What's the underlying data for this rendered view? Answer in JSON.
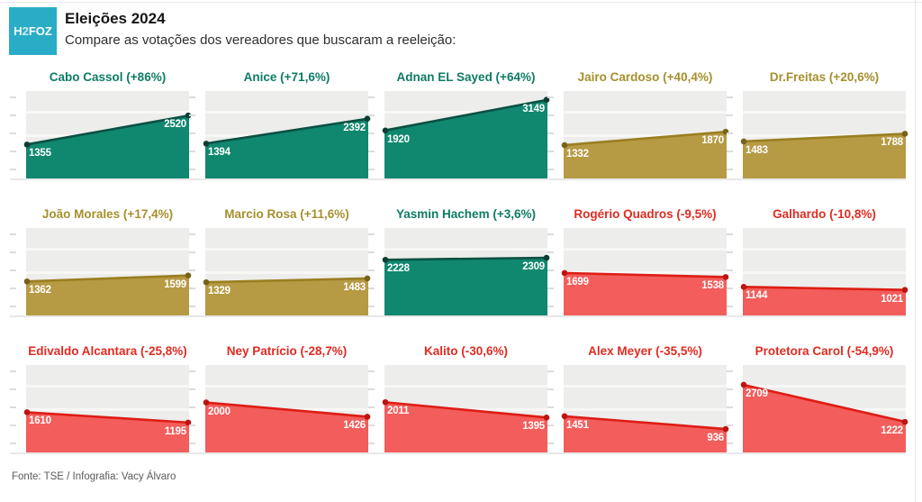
{
  "header": {
    "logo_text_main": "H",
    "logo_text_digit": "2",
    "logo_text_rest": "FOZ",
    "logo_color": "#29ADC6",
    "title": "Eleições 2024",
    "subtitle": "Compare as votações dos vereadores que buscaram a reeleição:"
  },
  "footer": {
    "source": "Fonte: TSE / Infografia: Vacy Álvaro"
  },
  "chart_data": {
    "type": "area",
    "layout": "small-multiples",
    "grid": {
      "rows": 3,
      "cols": 5
    },
    "ylim": [
      0,
      3500
    ],
    "x_points_per_chart": 2,
    "legend": "none",
    "themes": {
      "green": {
        "fill": "#10876F",
        "line": "#0B5143",
        "dot": "#0E3D33",
        "title_color": "#0E7C65"
      },
      "gold": {
        "fill": "#B69A44",
        "line": "#9A7E20",
        "dot": "#77621A",
        "title_color": "#A5902D"
      },
      "red": {
        "fill": "#F35D5B",
        "line": "#DD1D15",
        "dot": "#BC1410",
        "title_color": "#E02B21"
      }
    },
    "charts": [
      {
        "title": "Cabo Cassol (+86%)",
        "name": "Cabo Cassol",
        "change": "+86%",
        "start": 1355,
        "end": 2520,
        "theme": "green"
      },
      {
        "title": "Anice (+71,6%)",
        "name": "Anice",
        "change": "+71,6%",
        "start": 1394,
        "end": 2392,
        "theme": "green"
      },
      {
        "title": "Adnan EL Sayed (+64%)",
        "name": "Adnan EL Sayed",
        "change": "+64%",
        "start": 1920,
        "end": 3149,
        "theme": "green"
      },
      {
        "title": "Jairo Cardoso (+40,4%)",
        "name": "Jairo Cardoso",
        "change": "+40,4%",
        "start": 1332,
        "end": 1870,
        "theme": "gold"
      },
      {
        "title": "Dr.Freitas (+20,6%)",
        "name": "Dr.Freitas",
        "change": "+20,6%",
        "start": 1483,
        "end": 1788,
        "theme": "gold"
      },
      {
        "title": "João Morales (+17,4%)",
        "name": "João Morales",
        "change": "+17,4%",
        "start": 1362,
        "end": 1599,
        "theme": "gold"
      },
      {
        "title": "Marcio Rosa (+11,6%)",
        "name": "Marcio Rosa",
        "change": "+11,6%",
        "start": 1329,
        "end": 1483,
        "theme": "gold"
      },
      {
        "title": "Yasmin Hachem (+3,6%)",
        "name": "Yasmin Hachem",
        "change": "+3,6%",
        "start": 2228,
        "end": 2309,
        "theme": "green"
      },
      {
        "title": "Rogério Quadros (-9,5%)",
        "name": "Rogério Quadros",
        "change": "-9,5%",
        "start": 1699,
        "end": 1538,
        "theme": "red"
      },
      {
        "title": "Galhardo (-10,8%)",
        "name": "Galhardo",
        "change": "-10,8%",
        "start": 1144,
        "end": 1021,
        "theme": "red"
      },
      {
        "title": "Edivaldo Alcantara (-25,8%)",
        "name": "Edivaldo Alcantara",
        "change": "-25,8%",
        "start": 1610,
        "end": 1195,
        "theme": "red"
      },
      {
        "title": "Ney Patrício (-28,7%)",
        "name": "Ney Patrício",
        "change": "-28,7%",
        "start": 2000,
        "end": 1426,
        "theme": "red"
      },
      {
        "title": "Kalito (-30,6%)",
        "name": "Kalito",
        "change": "-30,6%",
        "start": 2011,
        "end": 1395,
        "theme": "red"
      },
      {
        "title": "Alex Meyer (-35,5%)",
        "name": "Alex Meyer",
        "change": "-35,5%",
        "start": 1451,
        "end": 936,
        "theme": "red"
      },
      {
        "title": "Protetora Carol (-54,9%)",
        "name": "Protetora Carol",
        "change": "-54,9%",
        "start": 2709,
        "end": 1222,
        "theme": "red"
      }
    ]
  }
}
